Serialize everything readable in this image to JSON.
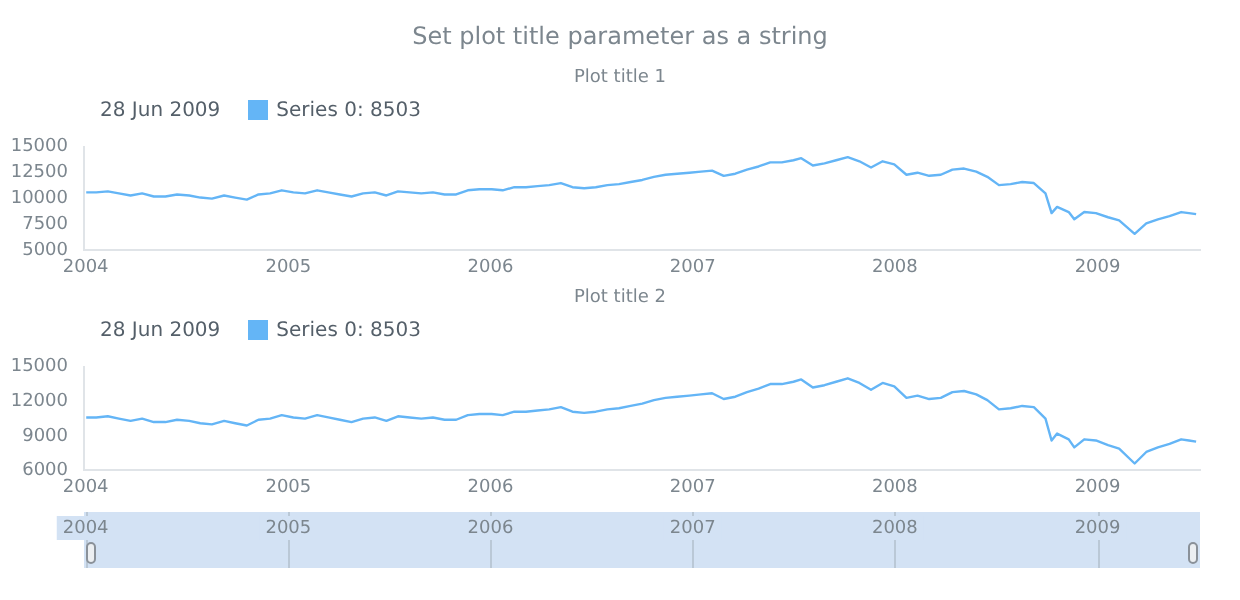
{
  "chart_data": [
    {
      "type": "line",
      "title": "Set plot title parameter as a string",
      "subtitle": "Plot title 1",
      "legend_title": "28 Jun 2009",
      "legend": "top left",
      "grid": false,
      "x": [
        "2004-01-02",
        "2004-01-20",
        "2004-02-10",
        "2004-03-01",
        "2004-03-22",
        "2004-04-12",
        "2004-05-03",
        "2004-05-24",
        "2004-06-14",
        "2004-07-06",
        "2004-07-26",
        "2004-08-16",
        "2004-09-07",
        "2004-09-27",
        "2004-10-18",
        "2004-11-08",
        "2004-11-29",
        "2004-12-20",
        "2005-01-10",
        "2005-01-31",
        "2005-02-22",
        "2005-03-14",
        "2005-04-04",
        "2005-04-25",
        "2005-05-16",
        "2005-06-06",
        "2005-06-27",
        "2005-07-18",
        "2005-08-08",
        "2005-08-29",
        "2005-09-19",
        "2005-10-10",
        "2005-10-31",
        "2005-11-21",
        "2005-12-12",
        "2006-01-03",
        "2006-01-23",
        "2006-02-13",
        "2006-03-06",
        "2006-03-27",
        "2006-04-17",
        "2006-05-08",
        "2006-05-29",
        "2006-06-19",
        "2006-07-10",
        "2006-07-31",
        "2006-08-21",
        "2006-09-11",
        "2006-10-02",
        "2006-10-23",
        "2006-11-13",
        "2006-12-04",
        "2006-12-26",
        "2007-01-16",
        "2007-02-05",
        "2007-02-26",
        "2007-03-19",
        "2007-04-09",
        "2007-04-30",
        "2007-05-21",
        "2007-06-11",
        "2007-07-02",
        "2007-07-16",
        "2007-08-06",
        "2007-08-27",
        "2007-09-17",
        "2007-10-08",
        "2007-10-29",
        "2007-11-19",
        "2007-12-10",
        "2007-12-31",
        "2008-01-22",
        "2008-02-11",
        "2008-03-03",
        "2008-03-24",
        "2008-04-14",
        "2008-05-05",
        "2008-05-27",
        "2008-06-16",
        "2008-07-07",
        "2008-07-28",
        "2008-08-18",
        "2008-09-08",
        "2008-09-29",
        "2008-10-10",
        "2008-10-20",
        "2008-11-10",
        "2008-11-20",
        "2008-12-08",
        "2008-12-29",
        "2009-01-20",
        "2009-02-09",
        "2009-03-09",
        "2009-03-30",
        "2009-04-20",
        "2009-05-11",
        "2009-06-01",
        "2009-06-15",
        "2009-06-28"
      ],
      "series": [
        {
          "name": "Series 0: 8503",
          "color": "#64b5f6",
          "values": [
            10600,
            10600,
            10700,
            10500,
            10300,
            10500,
            10200,
            10200,
            10400,
            10300,
            10100,
            10000,
            10300,
            10100,
            9900,
            10400,
            10500,
            10800,
            10600,
            10500,
            10800,
            10600,
            10400,
            10200,
            10500,
            10600,
            10300,
            10700,
            10600,
            10500,
            10600,
            10400,
            10400,
            10800,
            10900,
            10900,
            10800,
            11100,
            11100,
            11200,
            11300,
            11500,
            11100,
            11000,
            11100,
            11300,
            11400,
            11600,
            11800,
            12100,
            12300,
            12400,
            12500,
            12600,
            12700,
            12200,
            12400,
            12800,
            13100,
            13500,
            13500,
            13700,
            13900,
            13200,
            13400,
            13700,
            14000,
            13600,
            13000,
            13600,
            13300,
            12300,
            12500,
            12200,
            12300,
            12800,
            12900,
            12600,
            12100,
            11300,
            11400,
            11600,
            11500,
            10500,
            8600,
            9200,
            8700,
            8000,
            8700,
            8600,
            8200,
            7900,
            6600,
            7600,
            8000,
            8300,
            8700,
            8600,
            8503
          ]
        }
      ],
      "xlim": [
        "2003-12-29",
        "2009-07-05"
      ],
      "xticks": [
        "2004",
        "2005",
        "2006",
        "2007",
        "2008",
        "2009"
      ],
      "ylim": [
        5000,
        15000
      ],
      "yticks": [
        5000,
        7500,
        10000,
        12500,
        15000
      ]
    },
    {
      "type": "line",
      "subtitle": "Plot title 2",
      "legend_title": "28 Jun 2009",
      "legend": "top left",
      "grid": false,
      "x": [
        "2004-01-02",
        "2004-01-20",
        "2004-02-10",
        "2004-03-01",
        "2004-03-22",
        "2004-04-12",
        "2004-05-03",
        "2004-05-24",
        "2004-06-14",
        "2004-07-06",
        "2004-07-26",
        "2004-08-16",
        "2004-09-07",
        "2004-09-27",
        "2004-10-18",
        "2004-11-08",
        "2004-11-29",
        "2004-12-20",
        "2005-01-10",
        "2005-01-31",
        "2005-02-22",
        "2005-03-14",
        "2005-04-04",
        "2005-04-25",
        "2005-05-16",
        "2005-06-06",
        "2005-06-27",
        "2005-07-18",
        "2005-08-08",
        "2005-08-29",
        "2005-09-19",
        "2005-10-10",
        "2005-10-31",
        "2005-11-21",
        "2005-12-12",
        "2006-01-03",
        "2006-01-23",
        "2006-02-13",
        "2006-03-06",
        "2006-03-27",
        "2006-04-17",
        "2006-05-08",
        "2006-05-29",
        "2006-06-19",
        "2006-07-10",
        "2006-07-31",
        "2006-08-21",
        "2006-09-11",
        "2006-10-02",
        "2006-10-23",
        "2006-11-13",
        "2006-12-04",
        "2006-12-26",
        "2007-01-16",
        "2007-02-05",
        "2007-02-26",
        "2007-03-19",
        "2007-04-09",
        "2007-04-30",
        "2007-05-21",
        "2007-06-11",
        "2007-07-02",
        "2007-07-16",
        "2007-08-06",
        "2007-08-27",
        "2007-09-17",
        "2007-10-08",
        "2007-10-29",
        "2007-11-19",
        "2007-12-10",
        "2007-12-31",
        "2008-01-22",
        "2008-02-11",
        "2008-03-03",
        "2008-03-24",
        "2008-04-14",
        "2008-05-05",
        "2008-05-27",
        "2008-06-16",
        "2008-07-07",
        "2008-07-28",
        "2008-08-18",
        "2008-09-08",
        "2008-09-29",
        "2008-10-10",
        "2008-10-20",
        "2008-11-10",
        "2008-11-20",
        "2008-12-08",
        "2008-12-29",
        "2009-01-20",
        "2009-02-09",
        "2009-03-09",
        "2009-03-30",
        "2009-04-20",
        "2009-05-11",
        "2009-06-01",
        "2009-06-15",
        "2009-06-28"
      ],
      "series": [
        {
          "name": "Series 0: 8503",
          "color": "#64b5f6",
          "values": [
            10600,
            10600,
            10700,
            10500,
            10300,
            10500,
            10200,
            10200,
            10400,
            10300,
            10100,
            10000,
            10300,
            10100,
            9900,
            10400,
            10500,
            10800,
            10600,
            10500,
            10800,
            10600,
            10400,
            10200,
            10500,
            10600,
            10300,
            10700,
            10600,
            10500,
            10600,
            10400,
            10400,
            10800,
            10900,
            10900,
            10800,
            11100,
            11100,
            11200,
            11300,
            11500,
            11100,
            11000,
            11100,
            11300,
            11400,
            11600,
            11800,
            12100,
            12300,
            12400,
            12500,
            12600,
            12700,
            12200,
            12400,
            12800,
            13100,
            13500,
            13500,
            13700,
            13900,
            13200,
            13400,
            13700,
            14000,
            13600,
            13000,
            13600,
            13300,
            12300,
            12500,
            12200,
            12300,
            12800,
            12900,
            12600,
            12100,
            11300,
            11400,
            11600,
            11500,
            10500,
            8600,
            9200,
            8700,
            8000,
            8700,
            8600,
            8200,
            7900,
            6600,
            7600,
            8000,
            8300,
            8700,
            8600,
            8503
          ]
        }
      ],
      "xlim": [
        "2003-12-29",
        "2009-07-05"
      ],
      "xticks": [
        "2004",
        "2005",
        "2006",
        "2007",
        "2008",
        "2009"
      ],
      "x2lim": [
        "2003-12-29",
        "2009-07-05"
      ],
      "x2ticks": [
        "2004",
        "2005",
        "2006",
        "2007",
        "2008",
        "2009"
      ],
      "ylim": [
        6000,
        15000
      ],
      "yticks": [
        6000,
        9000,
        12000,
        15000
      ]
    }
  ]
}
